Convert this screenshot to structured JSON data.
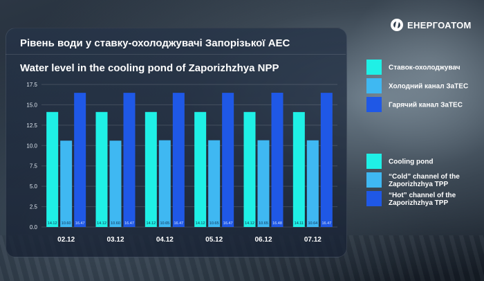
{
  "brand": {
    "name": "ЕНЕРГОАТОМ",
    "logo": "energoatom-logo"
  },
  "header": {
    "title_uk": "Рівень води у ставку-охолоджувачі Запорізької АЕС",
    "title_en": "Water level in the cooling pond of Zaporizhzhya NPP"
  },
  "legend_uk": [
    {
      "label": "Ставок-охолоджувач",
      "color": "#1ff0e6"
    },
    {
      "label": "Холодний канал ЗаТЕС",
      "color": "#3fb8f2"
    },
    {
      "label": "Гарячий канал ЗаТЕС",
      "color": "#1f58e6"
    }
  ],
  "legend_en": [
    {
      "label": "Cooling pond",
      "color": "#1ff0e6"
    },
    {
      "label": "“Cold” channel of the Zaporizhzhya TPP",
      "color": "#3fb8f2"
    },
    {
      "label": "“Hot” channel of the Zaporizhzhya TPP",
      "color": "#1f58e6"
    }
  ],
  "chart_data": {
    "type": "bar",
    "title": "Water level in the cooling pond of Zaporizhzhya NPP",
    "categories": [
      "02.12",
      "03.12",
      "04.12",
      "05.12",
      "06.12",
      "07.12"
    ],
    "series": [
      {
        "name": "Cooling pond",
        "values": [
          14.12,
          14.12,
          14.12,
          14.12,
          14.12,
          14.11
        ],
        "color": "#1ff0e6"
      },
      {
        "name": "“Cold” channel of the Zaporizhzhya TPP",
        "values": [
          10.6,
          10.6,
          10.65,
          10.65,
          10.65,
          10.64
        ],
        "color": "#3fb8f2"
      },
      {
        "name": "“Hot” channel of the Zaporizhzhya TPP",
        "values": [
          16.47,
          16.47,
          16.47,
          16.47,
          16.48,
          16.47
        ],
        "color": "#1f58e6"
      }
    ],
    "value_labels": [
      [
        "14.12",
        "14.12",
        "14.12",
        "14.12",
        "14.12",
        "14.11"
      ],
      [
        "10.60",
        "10.60",
        "10.65",
        "10.65",
        "10.65",
        "10.64"
      ],
      [
        "16.47",
        "16.47",
        "16.47",
        "16.47",
        "16.48",
        "16.47"
      ]
    ],
    "yticks": [
      "0.0",
      "2.5",
      "5.0",
      "7.5",
      "10.0",
      "12.5",
      "15.0",
      "17.5"
    ],
    "ylim": [
      0,
      17.5
    ],
    "grid": true,
    "legend_position": "right"
  }
}
